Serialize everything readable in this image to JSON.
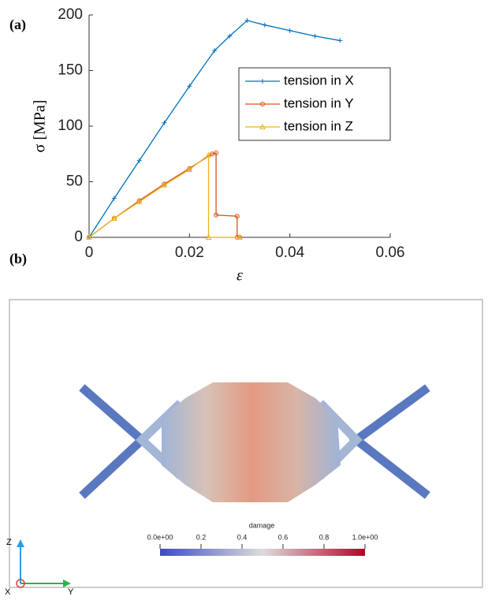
{
  "figure": {
    "panel_a": "(a)",
    "panel_b": "(b)"
  },
  "chart_data": {
    "type": "line",
    "xlabel": "ε",
    "ylabel": "σ [MPa]",
    "xlim": [
      0,
      0.06
    ],
    "xticks": [
      0,
      0.02,
      0.04,
      0.06
    ],
    "ylim": [
      0,
      200
    ],
    "yticks": [
      0,
      50,
      100,
      150,
      200
    ],
    "legend": "upper right",
    "series": [
      {
        "name": "tension in X",
        "color": "#0072bd",
        "marker": "plus",
        "x": [
          0,
          0.005,
          0.01,
          0.015,
          0.02,
          0.025,
          0.028,
          0.0315,
          0.035,
          0.04,
          0.045,
          0.05
        ],
        "values": [
          0,
          35,
          69,
          103,
          136,
          168,
          181,
          195,
          191,
          186,
          181,
          177
        ]
      },
      {
        "name": "tension in Y",
        "color": "#d95319",
        "marker": "circle",
        "x": [
          0,
          0.005,
          0.01,
          0.015,
          0.02,
          0.0245,
          0.0253,
          0.0253,
          0.0295,
          0.0295,
          0.03
        ],
        "values": [
          0,
          17,
          33,
          48,
          62,
          75,
          76,
          20,
          19,
          0,
          0
        ]
      },
      {
        "name": "tension in Z",
        "color": "#edb120",
        "marker": "triangle",
        "x": [
          0,
          0.005,
          0.01,
          0.015,
          0.02,
          0.0238,
          0.0238,
          0.03
        ],
        "values": [
          0,
          17,
          32,
          47,
          61,
          74,
          0,
          0
        ]
      }
    ]
  },
  "render": {
    "colorbar": {
      "title": "damage",
      "ticks": [
        {
          "value": 0,
          "label": "0.0e+00"
        },
        0.2,
        0.4,
        0.6,
        0.8,
        {
          "value": 1,
          "label": "1.0e+00"
        }
      ]
    },
    "axes": {
      "z": "Z",
      "x": "X",
      "y": "Y"
    }
  }
}
